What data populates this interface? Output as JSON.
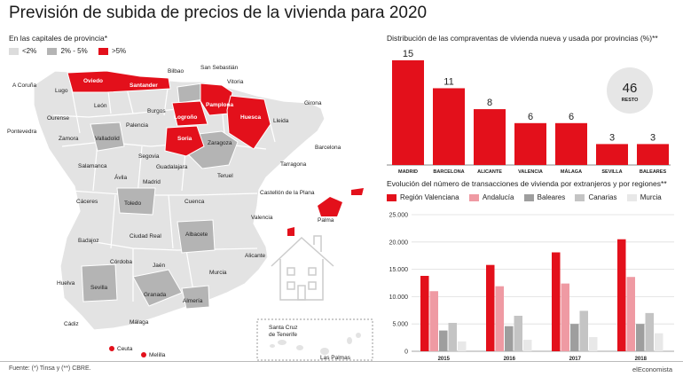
{
  "title": "Previsión de subida de precios de la vivienda para 2020",
  "map": {
    "subtitle": "En las capitales de provincia*",
    "legend": [
      {
        "label": "<2%",
        "color": "#dcdcdc"
      },
      {
        "label": "2% - 5%",
        "color": "#b4b4b4"
      },
      {
        "label": ">5%",
        "color": "#e3101b"
      }
    ],
    "cities": [
      "A Coruña",
      "Oviedo",
      "Santander",
      "Bilbao",
      "San Sebastián",
      "Vitoria",
      "Lugo",
      "León",
      "Pamplona",
      "Ourense",
      "Palencia",
      "Burgos",
      "Logroño",
      "Huesca",
      "Girona",
      "Lleida",
      "Pontevedra",
      "Zamora",
      "Valladolid",
      "Soria",
      "Zaragoza",
      "Barcelona",
      "Segovia",
      "Salamanca",
      "Guadalajara",
      "Tarragona",
      "Ávila",
      "Madrid",
      "Teruel",
      "Castellón de la Plana",
      "Cáceres",
      "Toledo",
      "Cuenca",
      "Valencia",
      "Palma",
      "Badajoz",
      "Ciudad Real",
      "Albacete",
      "Alicante",
      "Córdoba",
      "Jaén",
      "Murcia",
      "Huelva",
      "Sevilla",
      "Granada",
      "Almería",
      "Málaga",
      "Cádiz",
      "Ceuta",
      "Melilla",
      "Santa Cruz de Tenerife",
      "Las Palmas"
    ]
  },
  "chart_data": [
    {
      "type": "bar",
      "title": "Distribución de las compraventas de vivienda nueva y usada por provincias (%)**",
      "categories": [
        "MADRID",
        "BARCELONA",
        "ALICANTE",
        "VALENCIA",
        "MÁLAGA",
        "SEVILLA",
        "BALEARES"
      ],
      "values": [
        15,
        11,
        8,
        6,
        6,
        3,
        3
      ],
      "ylim": [
        0,
        15
      ],
      "color": "#e3101b",
      "callout": {
        "value": "46",
        "label": "RESTO"
      }
    },
    {
      "type": "bar",
      "title": "Evolución del número de transacciones de vivienda por extranjeros y por regiones**",
      "categories": [
        "2015",
        "2016",
        "2017",
        "2018"
      ],
      "ylim": [
        0,
        25000
      ],
      "yticks": [
        "25.000",
        "20.000",
        "15.000",
        "10.000",
        "5.000",
        "0"
      ],
      "series": [
        {
          "name": "Región Valenciana",
          "color": "#e3101b",
          "values": [
            13800,
            15800,
            18100,
            20500
          ]
        },
        {
          "name": "Andalucía",
          "color": "#ef9aa3",
          "values": [
            11000,
            11900,
            12400,
            13600
          ]
        },
        {
          "name": "Baleares",
          "color": "#9e9e9e",
          "values": [
            3800,
            4600,
            5000,
            5000
          ]
        },
        {
          "name": "Canarias",
          "color": "#c4c4c4",
          "values": [
            5200,
            6500,
            7400,
            7000
          ]
        },
        {
          "name": "Murcia",
          "color": "#e8e8e8",
          "values": [
            1800,
            2100,
            2600,
            3300
          ]
        }
      ],
      "grid": true
    }
  ],
  "footer": {
    "source": "Fuente: (*) Tinsa y (**) CBRE.",
    "brand": "elEconomista"
  }
}
